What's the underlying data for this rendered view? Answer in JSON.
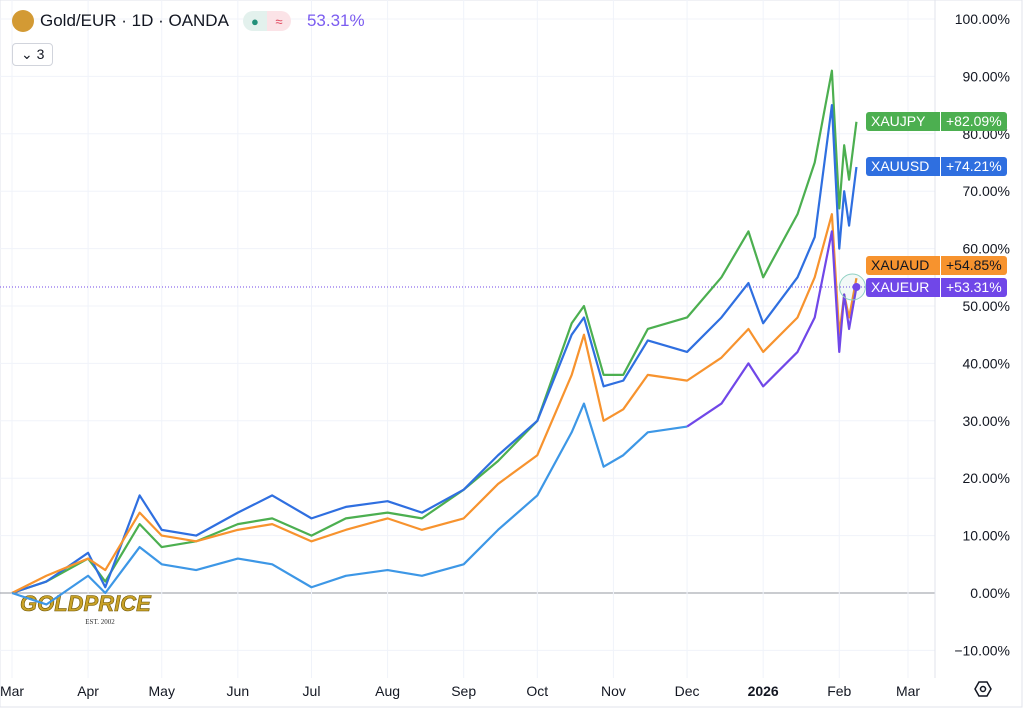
{
  "header": {
    "title": "Gold/EUR · 1D · OANDA",
    "market_status": "open",
    "change_indicator": "≈",
    "value": "53.31%",
    "series_count": "3"
  },
  "chart_data": {
    "type": "line",
    "yaxis": {
      "ticks": [
        -10,
        0,
        10,
        20,
        30,
        40,
        50,
        60,
        70,
        80,
        90,
        100
      ],
      "tick_labels": [
        "−10.00%",
        "0.00%",
        "10.00%",
        "20.00%",
        "30.00%",
        "40.00%",
        "50.00%",
        "60.00%",
        "70.00%",
        "80.00%",
        "90.00%",
        "100.00%"
      ],
      "ylim": [
        -12,
        103
      ],
      "unit": "%"
    },
    "xaxis": {
      "ticks": [
        "2025-03-01",
        "2025-04-01",
        "2025-05-01",
        "2025-06-01",
        "2025-07-01",
        "2025-08-01",
        "2025-09-01",
        "2025-10-01",
        "2025-11-01",
        "2025-12-01",
        "2026-01-01",
        "2026-02-01",
        "2026-03-01"
      ],
      "tick_labels": [
        "Mar",
        "Apr",
        "May",
        "Jun",
        "Jul",
        "Aug",
        "Sep",
        "Oct",
        "Nov",
        "Dec",
        "2026",
        "Feb",
        "Mar"
      ],
      "xlim": [
        "2025-02-28",
        "2026-03-12"
      ]
    },
    "grid": true,
    "dates": [
      "2025-03-01",
      "2025-03-15",
      "2025-04-01",
      "2025-04-08",
      "2025-04-22",
      "2025-05-01",
      "2025-05-15",
      "2025-06-01",
      "2025-06-15",
      "2025-07-01",
      "2025-07-15",
      "2025-08-01",
      "2025-08-15",
      "2025-09-01",
      "2025-09-15",
      "2025-10-01",
      "2025-10-15",
      "2025-10-20",
      "2025-10-28",
      "2025-11-05",
      "2025-11-15",
      "2025-12-01",
      "2025-12-15",
      "2025-12-26",
      "2026-01-01",
      "2026-01-15",
      "2026-01-22",
      "2026-01-29",
      "2026-02-01",
      "2026-02-03",
      "2026-02-05",
      "2026-02-08"
    ],
    "series": [
      {
        "name": "XAUJPY",
        "label": "+82.09%",
        "color": "#4caf50",
        "values": [
          0,
          2,
          6,
          2,
          12,
          8,
          9,
          12,
          13,
          10,
          13,
          14,
          13,
          18,
          23,
          30,
          47,
          50,
          38,
          38,
          46,
          48,
          55,
          63,
          55,
          66,
          75,
          91,
          67,
          78,
          72,
          82.09
        ]
      },
      {
        "name": "XAUUSD",
        "label": "+74.21%",
        "color": "#2f6fe0",
        "values": [
          0,
          2,
          7,
          1,
          17,
          11,
          10,
          14,
          17,
          13,
          15,
          16,
          14,
          18,
          24,
          30,
          45,
          48,
          36,
          37,
          44,
          42,
          48,
          54,
          47,
          55,
          62,
          85,
          60,
          70,
          64,
          74.21
        ]
      },
      {
        "name": "XAUAUD",
        "label": "+54.85%",
        "color": "#f7932e",
        "values": [
          0,
          3,
          6,
          4,
          14,
          10,
          9,
          11,
          12,
          9,
          11,
          13,
          11,
          13,
          19,
          24,
          38,
          45,
          30,
          32,
          38,
          37,
          41,
          46,
          42,
          48,
          55,
          66,
          45,
          52,
          48,
          54.85
        ]
      },
      {
        "name": "XAUEUR",
        "label": "+53.31%",
        "color": "#7047e8",
        "line_color": "#3d97e6",
        "values": [
          0,
          -2,
          3,
          0,
          8,
          5,
          4,
          6,
          5,
          1,
          3,
          4,
          3,
          5,
          11,
          17,
          28,
          33,
          22,
          24,
          28,
          29,
          33,
          40,
          36,
          42,
          48,
          63,
          42,
          52,
          46,
          53.31
        ]
      }
    ],
    "current_value_line": 53.31
  },
  "logo": {
    "text": "GOLDPRICE",
    "sub": "EST. 2002"
  }
}
